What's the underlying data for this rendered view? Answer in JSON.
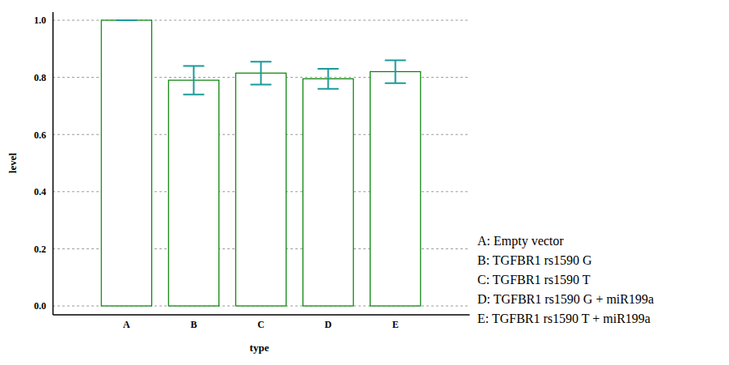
{
  "chart_data": {
    "type": "bar",
    "x_label": "type",
    "y_label": "level",
    "categories": [
      "A",
      "B",
      "C",
      "D",
      "E"
    ],
    "values": [
      1.0,
      0.79,
      0.815,
      0.795,
      0.82
    ],
    "errors": [
      0.0,
      0.05,
      0.04,
      0.035,
      0.04
    ],
    "color": "#008000",
    "error_color": "#1a9a9a",
    "ylim": [
      -0.03,
      1.03
    ],
    "yticks": [
      {
        "value": 0,
        "label": "0.0"
      },
      0.2,
      0.4,
      0.6,
      0.8,
      {
        "value": 1,
        "label": "1.0"
      }
    ],
    "grid": true,
    "annotations": [
      "A: Empty  vector",
      "B: TGFBR1 rs1590 G",
      "C: TGFBR1 rs1590 T",
      "D: TGFBR1 rs1590 G + miR199a",
      "E: TGFBR1 rs1590 T + miR199a"
    ]
  }
}
